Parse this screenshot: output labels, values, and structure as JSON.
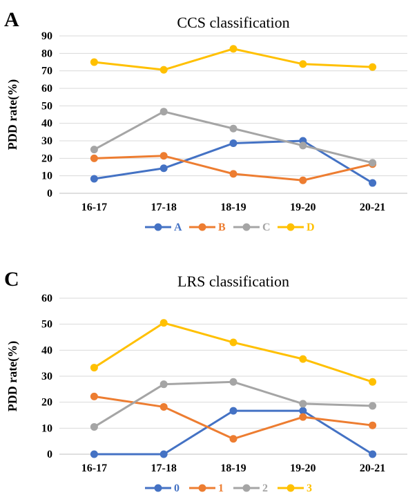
{
  "chart_data": [
    {
      "type": "line",
      "panel_label": "A",
      "title": "CCS classification",
      "ylabel": "PDD rate(%)",
      "xlabel": "",
      "categories": [
        "16-17",
        "17-18",
        "18-19",
        "19-20",
        "20-21"
      ],
      "ylim": [
        0,
        90
      ],
      "yticks": [
        0,
        10,
        20,
        30,
        40,
        50,
        60,
        70,
        80,
        90
      ],
      "grid": true,
      "legend_position": "bottom",
      "series": [
        {
          "name": "A",
          "color": "#4472c4",
          "values": [
            8.3,
            14.3,
            28.6,
            30.0,
            5.9
          ]
        },
        {
          "name": "B",
          "color": "#ed7d31",
          "values": [
            20.0,
            21.4,
            11.1,
            7.4,
            16.7
          ]
        },
        {
          "name": "C",
          "color": "#a5a5a5",
          "values": [
            25.0,
            46.7,
            37.0,
            27.3,
            17.4
          ]
        },
        {
          "name": "D",
          "color": "#ffc000",
          "values": [
            75.0,
            70.6,
            82.6,
            73.9,
            72.2
          ]
        }
      ]
    },
    {
      "type": "line",
      "panel_label": "C",
      "title": "LRS classification",
      "ylabel": "PDD rate(%)",
      "xlabel": "",
      "categories": [
        "16-17",
        "17-18",
        "18-19",
        "19-20",
        "20-21"
      ],
      "ylim": [
        0,
        60
      ],
      "yticks": [
        0,
        10,
        20,
        30,
        40,
        50,
        60
      ],
      "grid": true,
      "legend_position": "bottom",
      "series": [
        {
          "name": "0",
          "color": "#4472c4",
          "values": [
            0,
            0,
            16.7,
            16.7,
            0
          ]
        },
        {
          "name": "1",
          "color": "#ed7d31",
          "values": [
            22.2,
            18.2,
            5.9,
            14.3,
            11.1
          ]
        },
        {
          "name": "2",
          "color": "#a5a5a5",
          "values": [
            10.5,
            26.9,
            27.8,
            19.4,
            18.6
          ]
        },
        {
          "name": "3",
          "color": "#ffc000",
          "values": [
            33.3,
            50.5,
            43.0,
            36.6,
            27.8
          ]
        }
      ]
    }
  ]
}
